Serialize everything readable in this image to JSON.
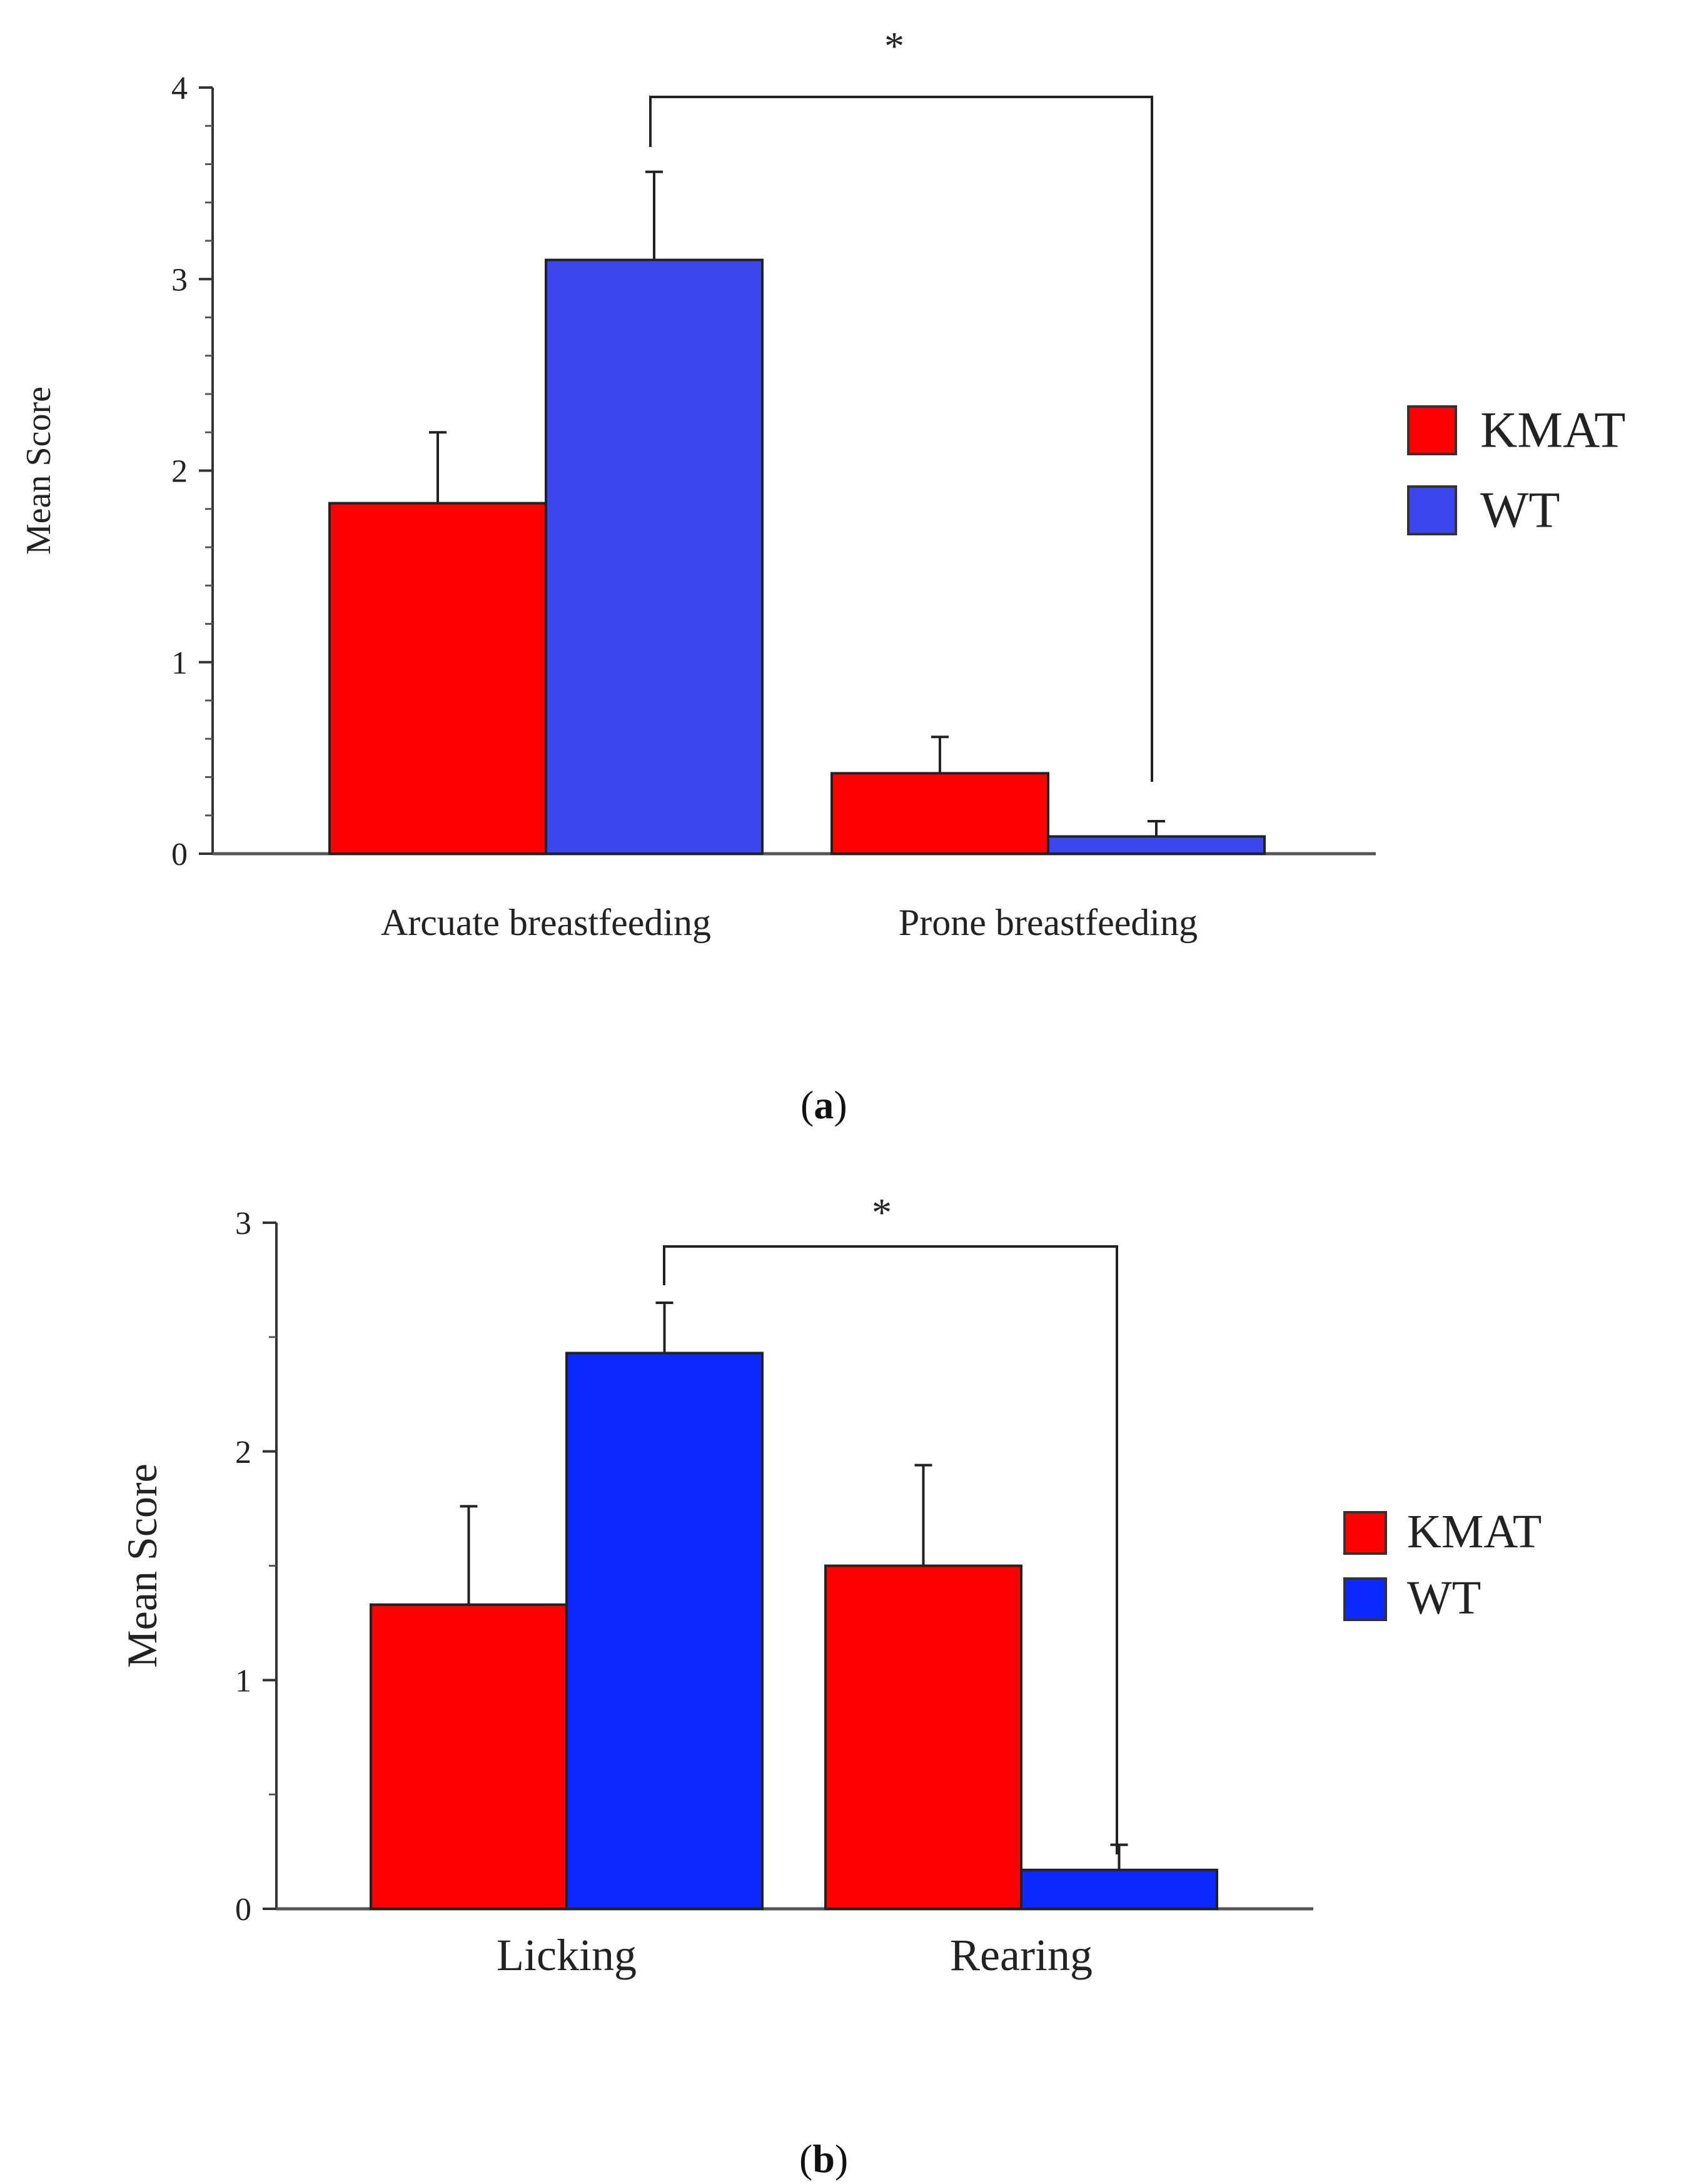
{
  "chart_data": [
    {
      "type": "bar",
      "panel": "a",
      "ylabel": "Mean Score",
      "xlabel": "",
      "categories": [
        "Arcuate breastfeeding",
        "Prone breastfeeding"
      ],
      "series": [
        {
          "name": "KMAT",
          "color": "#ff0000",
          "values": [
            1.83,
            0.42
          ],
          "errors": [
            0.37,
            0.19
          ]
        },
        {
          "name": "WT",
          "color": "#3b46ef",
          "values": [
            3.1,
            0.09
          ],
          "errors": [
            0.46,
            0.08
          ]
        }
      ],
      "ylim": [
        0,
        4
      ],
      "yticks": [
        "0",
        "1",
        "2",
        "3",
        "4"
      ],
      "significance": {
        "label": "*"
      },
      "panel_open": "(",
      "panel_letter": "a",
      "panel_close": ")"
    },
    {
      "type": "bar",
      "panel": "b",
      "ylabel": "Mean Score",
      "xlabel": "",
      "categories": [
        "Licking",
        "Rearing"
      ],
      "series": [
        {
          "name": "KMAT",
          "color": "#ff0000",
          "values": [
            1.33,
            1.5
          ],
          "errors": [
            0.43,
            0.44
          ]
        },
        {
          "name": "WT",
          "color": "#0a28ff",
          "values": [
            2.43,
            0.17
          ],
          "errors": [
            0.22,
            0.11
          ]
        }
      ],
      "ylim": [
        0,
        3
      ],
      "yticks": [
        "0",
        "1",
        "2",
        "3"
      ],
      "significance": {
        "label": "*"
      },
      "panel_open": "(",
      "panel_letter": "b",
      "panel_close": ")"
    }
  ]
}
